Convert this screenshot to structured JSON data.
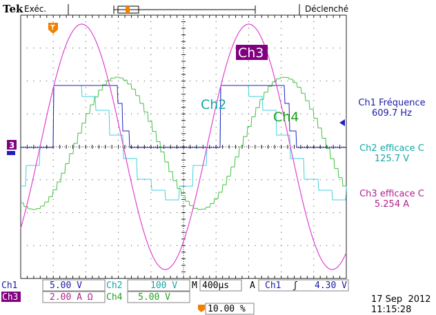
{
  "header": {
    "brand": "Tek",
    "acquisition_state": "Exéc.",
    "trigger_status": "Déclenché"
  },
  "waveform_labels": {
    "ch2": "Ch2",
    "ch3": "Ch3",
    "ch4": "Ch4",
    "ch3_marker": "3",
    "trigger_marker": "T"
  },
  "measurements": [
    {
      "label": "Ch1 Fréquence",
      "value": "609.7 Hz",
      "color": "#1a1aa6"
    },
    {
      "label": "Ch2 efficace C",
      "value": "125.7 V",
      "color": "#13a6a6"
    },
    {
      "label": "Ch3 efficace C",
      "value": "5.254 A",
      "color": "#b0208c"
    }
  ],
  "status_bar": {
    "ch1_label": "Ch1",
    "ch1_scale": "5.00 V",
    "ch2_label": "Ch2",
    "ch2_scale": "100 V",
    "ch3_label": "Ch3",
    "ch3_scale": "2.00 A Ω",
    "ch4_label": "Ch4",
    "ch4_scale": "5.00 V",
    "timebase_label": "M",
    "timebase": "400µs",
    "trigger_mode": "A",
    "trigger_source": "Ch1",
    "trigger_slope": "ʃ",
    "trigger_level": "4.30 V",
    "trigger_position": "10.00 %",
    "date": "17 Sep  2012",
    "time": "11:15:28"
  },
  "colors": {
    "ch1": "#2020c0",
    "ch2": "#40d0e0",
    "ch3": "#e040d0",
    "ch4": "#40c040",
    "grid": "#202020",
    "trigger_marker": "#f08000",
    "ch3_badge": "#800080"
  }
}
